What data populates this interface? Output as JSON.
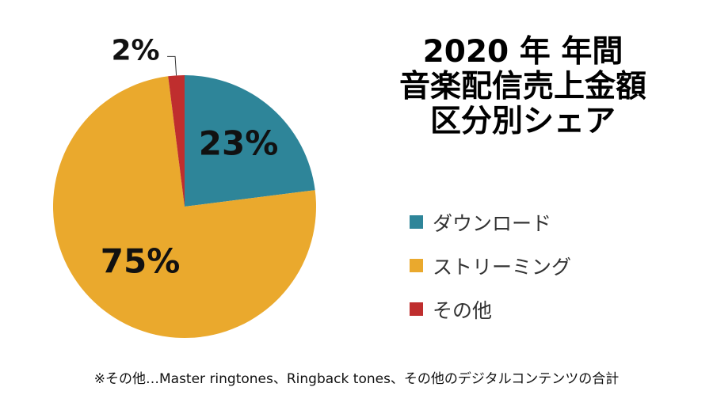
{
  "title_lines": [
    "2020 年 年間",
    "音楽配信売上金額",
    "区分別シェア"
  ],
  "footnote": "※その他…Master ringtones、Ringback tones、その他のデジタルコンテンツの合計",
  "chart_data": {
    "type": "pie",
    "title": "2020 年 年間 音楽配信売上金額 区分別シェア",
    "unit": "%",
    "slices": [
      {
        "name": "ダウンロード",
        "value": 23,
        "label": "23%",
        "color": "#2E8599"
      },
      {
        "name": "ストリーミング",
        "value": 75,
        "label": "75%",
        "color": "#EAA92D"
      },
      {
        "name": "その他",
        "value": 2,
        "label": "2%",
        "color": "#BF2E2E"
      }
    ],
    "legend_position": "right"
  }
}
